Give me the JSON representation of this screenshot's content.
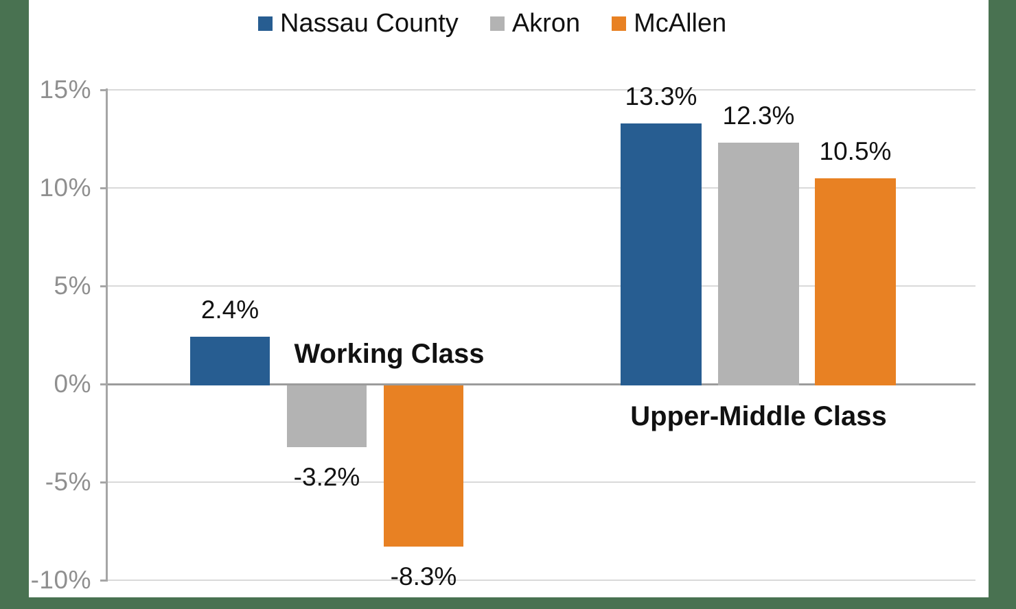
{
  "slide": {
    "background_color": "#497251",
    "panel_color": "#FFFFFF"
  },
  "legend": {
    "position": "top",
    "items": [
      {
        "label": "Nassau County",
        "color": "#275D91"
      },
      {
        "label": "Akron",
        "color": "#B3B3B3"
      },
      {
        "label": "McAllen",
        "color": "#E88123"
      }
    ]
  },
  "axis": {
    "tick_labels": [
      "15%",
      "10%",
      "5%",
      "0%",
      "-5%",
      "-10%"
    ],
    "tick_values": [
      15,
      10,
      5,
      0,
      -5,
      -10
    ],
    "tick_label_color": "#8F8F8F",
    "axis_line_color": "#A6A6A6",
    "gridline_color": "#D9D9D9",
    "zero_line_color": "#9B9B9B"
  },
  "chart_data": {
    "type": "bar",
    "title": "",
    "xlabel": "",
    "ylabel": "",
    "categories": [
      "Working Class",
      "Upper-Middle Class"
    ],
    "series": [
      {
        "name": "Nassau County",
        "color": "#275D91",
        "values": [
          2.4,
          13.3
        ],
        "labels": [
          "2.4%",
          "13.3%"
        ]
      },
      {
        "name": "Akron",
        "color": "#B3B3B3",
        "values": [
          -3.2,
          12.3
        ],
        "labels": [
          "-3.2%",
          "12.3%"
        ]
      },
      {
        "name": "McAllen",
        "color": "#E88123",
        "values": [
          -8.3,
          10.5
        ],
        "labels": [
          "-8.3%",
          "10.5%"
        ]
      }
    ],
    "ylim": [
      -10,
      15
    ],
    "ytick_step": 5,
    "grid": true,
    "legend_position": "top"
  }
}
